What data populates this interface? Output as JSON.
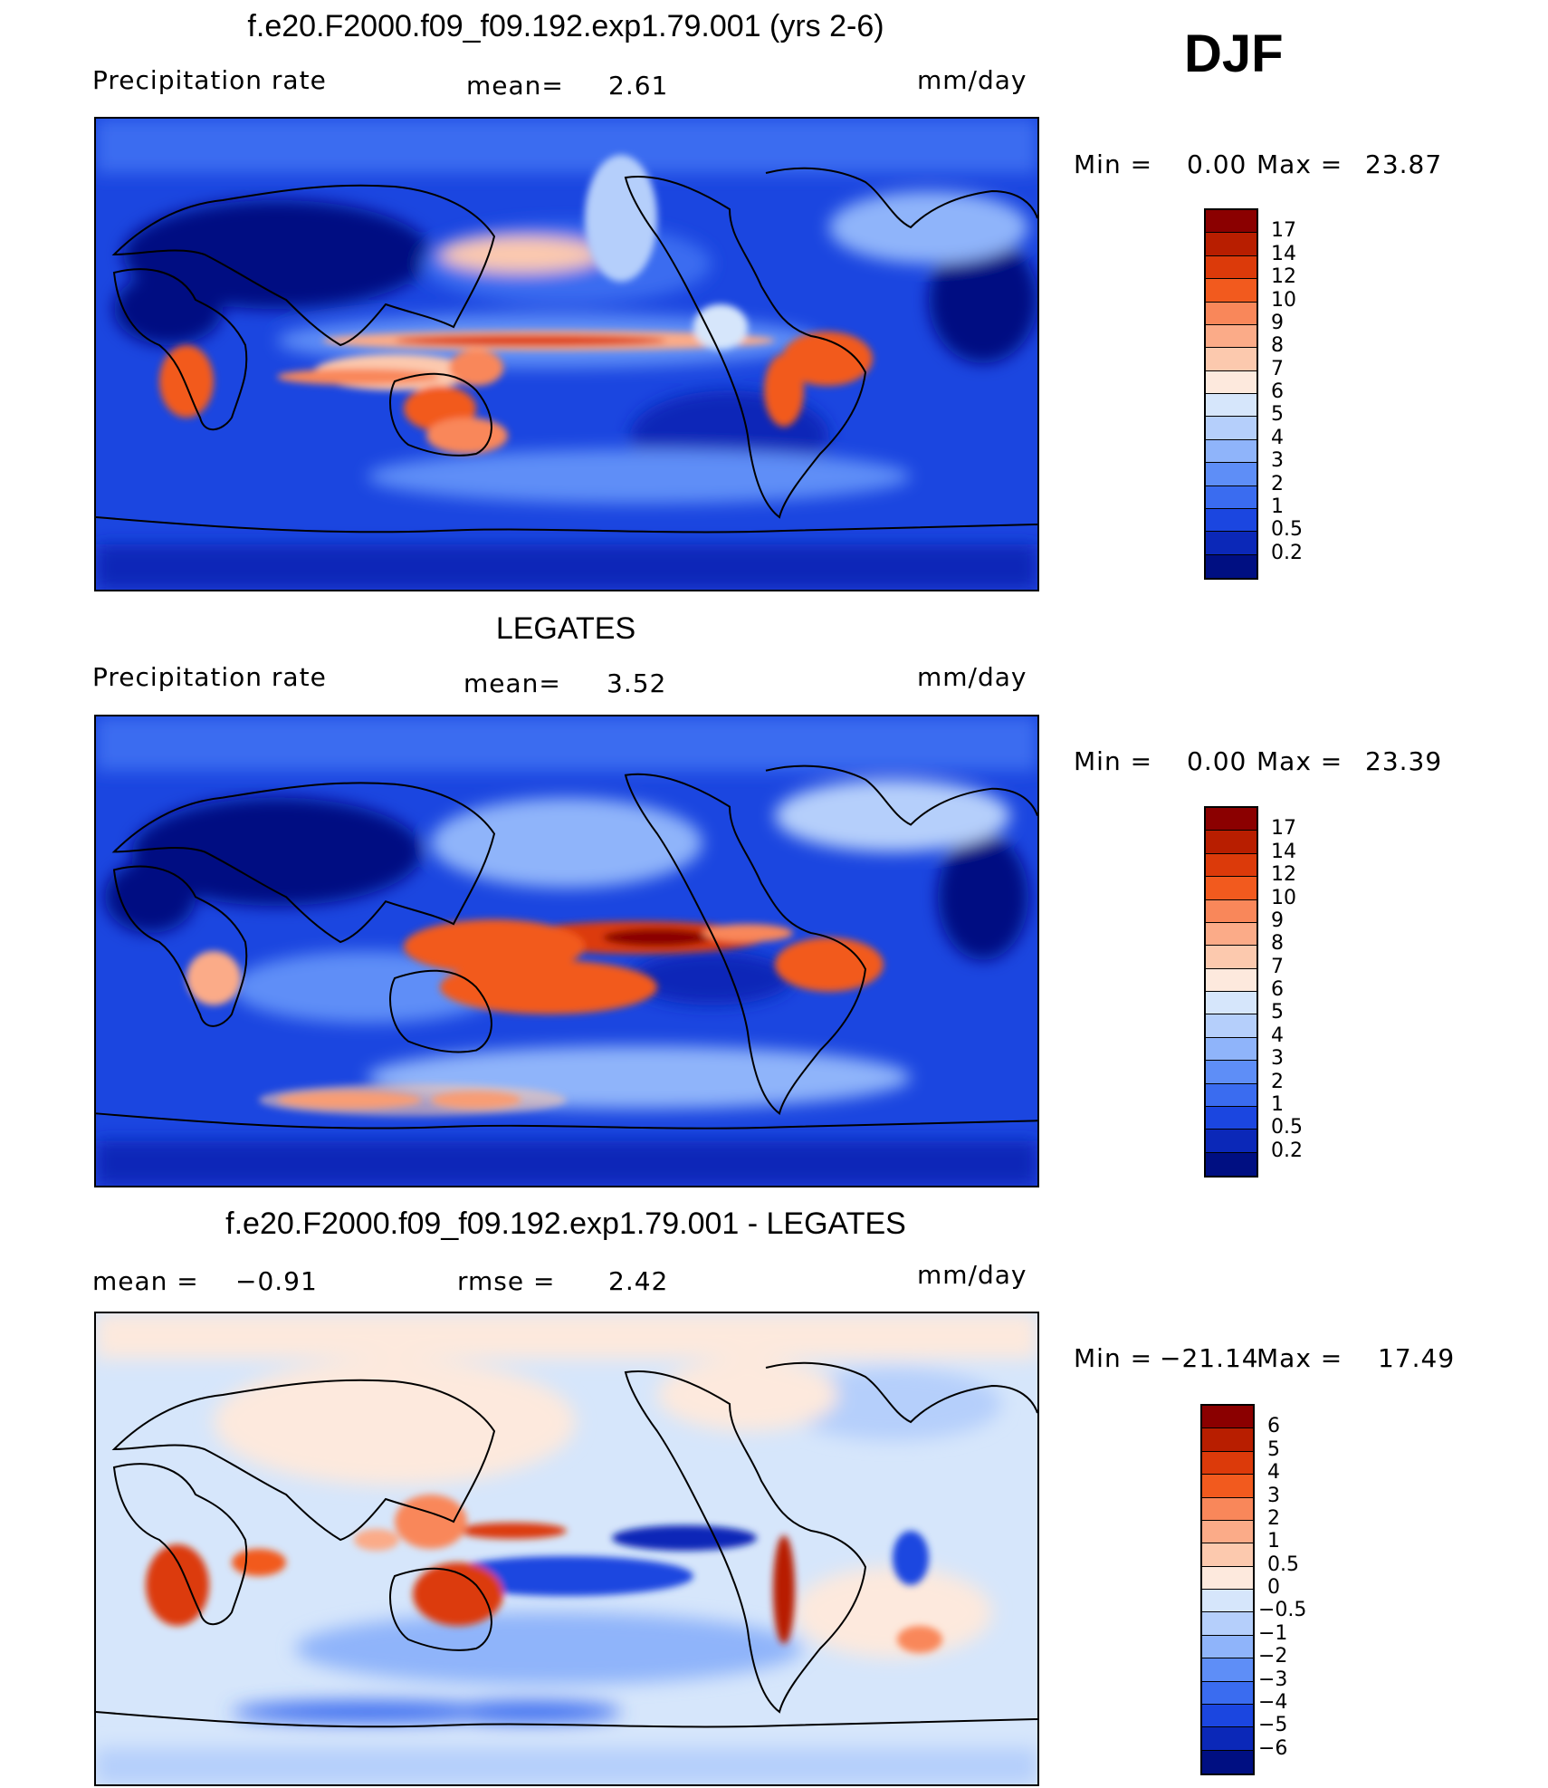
{
  "season": "DJF",
  "panels": [
    {
      "title": "f.e20.F2000.f09_f09.192.exp1.79.001 (yrs 2-6)",
      "left_label": "Precipitation  rate",
      "mid_label": "mean=",
      "mid_value": "2.61",
      "units": "mm/day",
      "minmax": {
        "min_label": "Min  =",
        "min_value": "0.00",
        "max_label": "Max  =",
        "max_value": "23.87"
      },
      "colorbar": {
        "labels": [
          "17",
          "14",
          "12",
          "10",
          "9",
          "8",
          "7",
          "6",
          "5",
          "4",
          "3",
          "2",
          "1",
          "0.5",
          "0.2"
        ],
        "colors": [
          "#8b0000",
          "#b81e00",
          "#dc3a0a",
          "#f25a1e",
          "#f9875a",
          "#fbab88",
          "#fcc9ae",
          "#fde9dd",
          "#d6e6fb",
          "#b5cffb",
          "#8fb4fa",
          "#5e8ef7",
          "#3a6cf0",
          "#1b46e0",
          "#0b28b8",
          "#000f82"
        ]
      }
    },
    {
      "title": "LEGATES",
      "left_label": "Precipitation  rate",
      "mid_label": "mean=",
      "mid_value": "3.52",
      "units": "mm/day",
      "minmax": {
        "min_label": "Min  =",
        "min_value": "0.00",
        "max_label": "Max  =",
        "max_value": "23.39"
      },
      "colorbar": {
        "labels": [
          "17",
          "14",
          "12",
          "10",
          "9",
          "8",
          "7",
          "6",
          "5",
          "4",
          "3",
          "2",
          "1",
          "0.5",
          "0.2"
        ],
        "colors": [
          "#8b0000",
          "#b81e00",
          "#dc3a0a",
          "#f25a1e",
          "#f9875a",
          "#fbab88",
          "#fcc9ae",
          "#fde9dd",
          "#d6e6fb",
          "#b5cffb",
          "#8fb4fa",
          "#5e8ef7",
          "#3a6cf0",
          "#1b46e0",
          "#0b28b8",
          "#000f82"
        ]
      }
    },
    {
      "title": "f.e20.F2000.f09_f09.192.exp1.79.001 - LEGATES",
      "left_label": "mean  =",
      "left_value": "−0.91",
      "mid_label": "rmse  =",
      "mid_value": "2.42",
      "units": "mm/day",
      "minmax": {
        "min_label": "Min  =",
        "min_value": "−21.14",
        "max_label": "Max  =",
        "max_value": "17.49"
      },
      "colorbar": {
        "labels": [
          "6",
          "5",
          "4",
          "3",
          "2",
          "1",
          "0.5",
          "0",
          "−0.5",
          "−1",
          "−2",
          "−3",
          "−4",
          "−5",
          "−6"
        ],
        "colors": [
          "#8b0000",
          "#b81e00",
          "#dc3a0a",
          "#f25a1e",
          "#f9875a",
          "#fbab88",
          "#fcc9ae",
          "#fde9dd",
          "#d6e6fb",
          "#b5cffb",
          "#8fb4fa",
          "#5e8ef7",
          "#3a6cf0",
          "#1b46e0",
          "#0b28b8",
          "#000f82"
        ]
      }
    }
  ]
}
